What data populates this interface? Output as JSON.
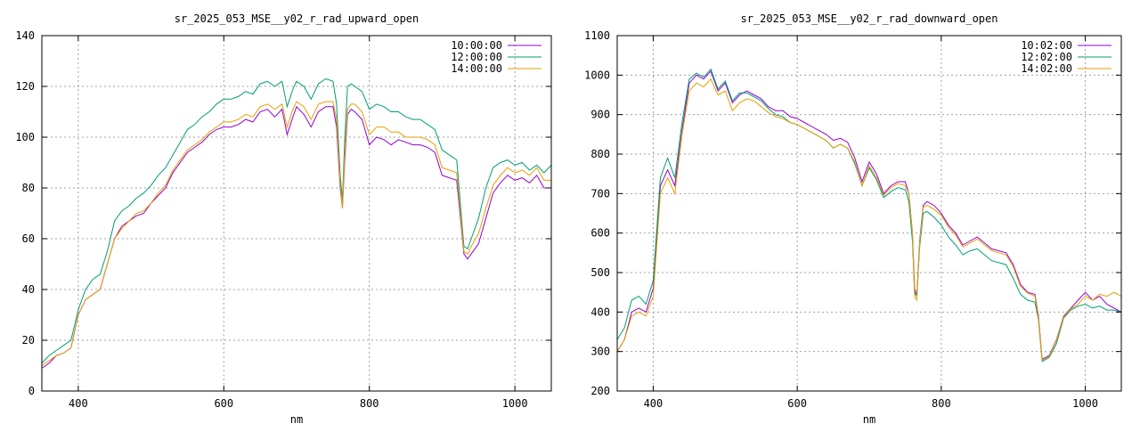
{
  "chart_data": [
    {
      "type": "line",
      "title": "sr_2025_053_MSE__y02_r_rad_upward_open",
      "xlabel": "nm",
      "ylabel": "",
      "xlim": [
        350,
        1050
      ],
      "ylim": [
        0,
        140
      ],
      "xticks": [
        400,
        600,
        800,
        1000
      ],
      "yticks": [
        0,
        20,
        40,
        60,
        80,
        100,
        120,
        140
      ],
      "grid": true,
      "legend_position": "top-right",
      "x": [
        350,
        360,
        370,
        380,
        390,
        400,
        410,
        420,
        430,
        440,
        450,
        460,
        470,
        480,
        490,
        500,
        510,
        520,
        530,
        540,
        550,
        560,
        570,
        580,
        590,
        600,
        610,
        620,
        630,
        640,
        650,
        660,
        670,
        680,
        687,
        695,
        700,
        710,
        720,
        730,
        740,
        750,
        755,
        760,
        763,
        766,
        770,
        775,
        780,
        790,
        800,
        810,
        820,
        830,
        840,
        850,
        860,
        870,
        880,
        890,
        900,
        910,
        920,
        930,
        935,
        940,
        950,
        960,
        970,
        980,
        990,
        1000,
        1010,
        1020,
        1030,
        1040,
        1050
      ],
      "series": [
        {
          "name": "10:00:00",
          "color": "#9400d3",
          "values": [
            9,
            11,
            14,
            15,
            17,
            30,
            36,
            38,
            40,
            50,
            60,
            65,
            67,
            69,
            70,
            74,
            77,
            80,
            86,
            90,
            94,
            96,
            98,
            101,
            103,
            104,
            104,
            105,
            107,
            106,
            110,
            111,
            108,
            111,
            101,
            108,
            112,
            109,
            104,
            110,
            112,
            112,
            104,
            80,
            72,
            90,
            109,
            111,
            110,
            107,
            97,
            100,
            99,
            97,
            99,
            98,
            97,
            97,
            96,
            94,
            85,
            84,
            83,
            54,
            52,
            54,
            58,
            68,
            78,
            82,
            85,
            83,
            84,
            82,
            85,
            80,
            80
          ]
        },
        {
          "name": "12:00:00",
          "color": "#009e73",
          "values": [
            11,
            14,
            16,
            18,
            20,
            32,
            40,
            44,
            46,
            55,
            67,
            71,
            73,
            76,
            78,
            81,
            85,
            88,
            93,
            98,
            103,
            105,
            108,
            110,
            113,
            115,
            115,
            116,
            118,
            117,
            121,
            122,
            120,
            122,
            112,
            119,
            122,
            120,
            115,
            121,
            123,
            122,
            113,
            85,
            75,
            98,
            120,
            121,
            120,
            118,
            111,
            113,
            112,
            110,
            110,
            108,
            107,
            107,
            105,
            103,
            95,
            93,
            91,
            57,
            56,
            60,
            68,
            80,
            88,
            90,
            91,
            89,
            90,
            87,
            89,
            86,
            89
          ]
        },
        {
          "name": "14:00:00",
          "color": "#e69f00",
          "values": [
            10,
            12,
            14,
            15,
            17,
            30,
            36,
            38,
            40,
            50,
            60,
            64,
            67,
            70,
            71,
            74,
            78,
            81,
            87,
            91,
            95,
            97,
            99,
            102,
            104,
            106,
            106,
            107,
            109,
            108,
            112,
            113,
            111,
            113,
            104,
            111,
            114,
            112,
            107,
            113,
            114,
            114,
            107,
            82,
            72,
            93,
            111,
            113,
            113,
            110,
            101,
            104,
            104,
            102,
            102,
            100,
            100,
            100,
            99,
            97,
            88,
            87,
            86,
            55,
            54,
            57,
            62,
            72,
            81,
            85,
            88,
            86,
            87,
            85,
            88,
            83,
            83
          ]
        }
      ]
    },
    {
      "type": "line",
      "title": "sr_2025_053_MSE__y02_r_rad_downward_open",
      "xlabel": "nm",
      "ylabel": "",
      "xlim": [
        350,
        1050
      ],
      "ylim": [
        200,
        1100
      ],
      "xticks": [
        400,
        600,
        800,
        1000
      ],
      "yticks": [
        200,
        300,
        400,
        500,
        600,
        700,
        800,
        900,
        1000,
        1100
      ],
      "grid": true,
      "legend_position": "top-right",
      "x": [
        350,
        360,
        370,
        380,
        390,
        400,
        410,
        420,
        430,
        440,
        450,
        460,
        470,
        480,
        490,
        500,
        510,
        520,
        530,
        540,
        550,
        560,
        570,
        580,
        590,
        600,
        610,
        620,
        630,
        640,
        650,
        660,
        670,
        680,
        690,
        700,
        710,
        720,
        730,
        740,
        750,
        755,
        760,
        763,
        766,
        770,
        775,
        780,
        790,
        800,
        810,
        820,
        830,
        840,
        850,
        860,
        870,
        880,
        890,
        900,
        910,
        920,
        930,
        935,
        940,
        950,
        960,
        970,
        980,
        990,
        1000,
        1010,
        1020,
        1030,
        1040,
        1050
      ],
      "series": [
        {
          "name": "10:02:00",
          "color": "#9400d3",
          "values": [
            300,
            330,
            400,
            410,
            400,
            460,
            720,
            760,
            720,
            860,
            980,
            1000,
            990,
            1010,
            960,
            980,
            930,
            950,
            960,
            950,
            940,
            920,
            910,
            910,
            895,
            890,
            880,
            870,
            860,
            850,
            835,
            840,
            830,
            790,
            730,
            780,
            750,
            700,
            720,
            730,
            730,
            700,
            600,
            460,
            440,
            580,
            670,
            680,
            670,
            650,
            620,
            600,
            570,
            580,
            590,
            575,
            560,
            555,
            550,
            520,
            470,
            450,
            445,
            390,
            280,
            290,
            330,
            390,
            410,
            430,
            450,
            430,
            440,
            420,
            410,
            400
          ]
        },
        {
          "name": "12:02:00",
          "color": "#009e73",
          "values": [
            330,
            360,
            430,
            440,
            420,
            480,
            740,
            790,
            740,
            880,
            990,
            1005,
            995,
            1015,
            965,
            985,
            935,
            955,
            955,
            945,
            935,
            915,
            900,
            895,
            880,
            875,
            865,
            855,
            845,
            835,
            815,
            825,
            815,
            775,
            720,
            765,
            735,
            690,
            705,
            715,
            710,
            680,
            580,
            450,
            440,
            565,
            650,
            655,
            640,
            620,
            590,
            570,
            545,
            555,
            560,
            545,
            530,
            525,
            520,
            485,
            445,
            430,
            425,
            380,
            275,
            285,
            320,
            385,
            405,
            415,
            420,
            410,
            415,
            405,
            405,
            400
          ]
        },
        {
          "name": "14:02:00",
          "color": "#e69f00",
          "values": [
            300,
            330,
            390,
            400,
            390,
            440,
            700,
            740,
            700,
            850,
            960,
            980,
            970,
            990,
            950,
            960,
            910,
            930,
            940,
            935,
            920,
            905,
            895,
            890,
            880,
            875,
            865,
            855,
            845,
            835,
            815,
            825,
            815,
            780,
            720,
            770,
            740,
            695,
            715,
            725,
            720,
            700,
            600,
            440,
            430,
            575,
            665,
            670,
            660,
            645,
            615,
            595,
            565,
            575,
            585,
            570,
            555,
            550,
            545,
            515,
            465,
            448,
            440,
            385,
            278,
            288,
            328,
            388,
            408,
            420,
            440,
            430,
            445,
            440,
            450,
            440
          ]
        }
      ]
    }
  ]
}
